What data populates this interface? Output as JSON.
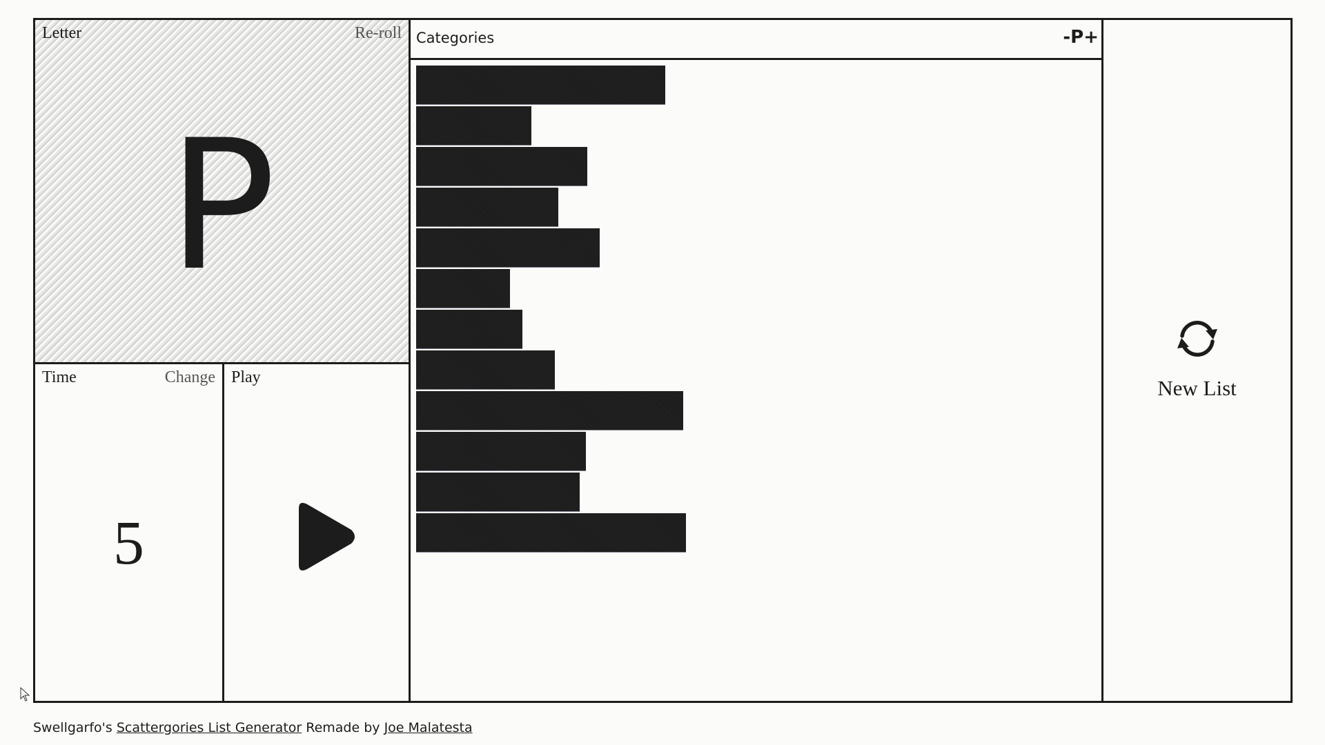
{
  "letter_panel": {
    "label": "Letter",
    "action": "Re-roll",
    "current_letter": "P"
  },
  "time_panel": {
    "label": "Time",
    "action": "Change",
    "value": "5"
  },
  "play_panel": {
    "label": "Play",
    "icon": "play-icon"
  },
  "categories_panel": {
    "title": "Categories",
    "letter_controls": {
      "decrement": "-",
      "letter": "P",
      "increment": "+"
    },
    "category_bars": [
      {
        "revealed_fraction": 0.367
      },
      {
        "revealed_fraction": 0.17
      },
      {
        "revealed_fraction": 0.252
      },
      {
        "revealed_fraction": 0.209
      },
      {
        "revealed_fraction": 0.27
      },
      {
        "revealed_fraction": 0.138
      },
      {
        "revealed_fraction": 0.156
      },
      {
        "revealed_fraction": 0.204
      },
      {
        "revealed_fraction": 0.393
      },
      {
        "revealed_fraction": 0.25
      },
      {
        "revealed_fraction": 0.241
      },
      {
        "revealed_fraction": 0.397
      }
    ],
    "bar_color": "#1e1e1e"
  },
  "new_list_panel": {
    "label": "New List",
    "icon": "refresh-icon"
  },
  "footer": {
    "prefix": "Swellgarfo's ",
    "link1": "Scattergories List Generator",
    "middle": " Remade by ",
    "link2": "Joe Malatesta"
  },
  "colors": {
    "background": "#fbfbf9",
    "border": "#1c1c1c",
    "muted_action": "#555555"
  }
}
